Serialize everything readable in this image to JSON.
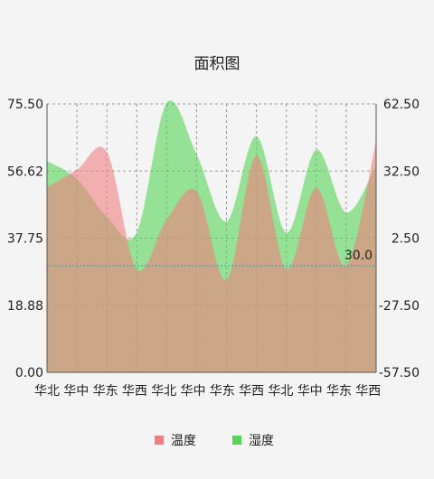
{
  "chart_data": {
    "type": "area",
    "title": "面积图",
    "categories": [
      "华北",
      "华中",
      "华东",
      "华西",
      "华北",
      "华中",
      "华东",
      "华西",
      "华北",
      "华中",
      "华东",
      "华西"
    ],
    "left_axis": {
      "min": 0.0,
      "max": 75.5,
      "ticks": [
        "75.50",
        "56.62",
        "37.75",
        "18.88",
        "0.00"
      ]
    },
    "right_axis": {
      "min": -57.5,
      "max": 62.5,
      "ticks": [
        "62.50",
        "32.50",
        "2.50",
        "-27.50",
        "-57.50"
      ]
    },
    "series": [
      {
        "name": "温度",
        "axis": "left",
        "color": "#f08080",
        "values": [
          52,
          57,
          62,
          29,
          43,
          51,
          26,
          61,
          29,
          52,
          30,
          65
        ]
      },
      {
        "name": "湿度",
        "axis": "right",
        "color": "#55d455",
        "values": [
          37,
          29,
          12,
          5,
          63,
          40,
          10,
          48,
          5,
          42,
          14,
          35
        ]
      }
    ],
    "limit_line": {
      "value": 30.0,
      "label": "30.0",
      "axis": "left",
      "color": "#2aa0c8"
    },
    "grid": true,
    "legend": "bottom-center"
  }
}
